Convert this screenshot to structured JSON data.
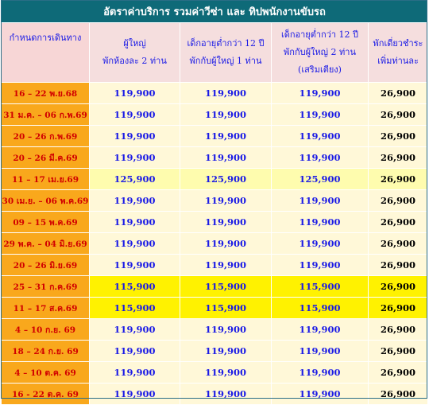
{
  "title": "อัตราค่าบริการ  รวมค่าวีซ่า และ ทิปพนักงานขับรถ",
  "headers": [
    {
      "line1": "กำหนดการเดินทาง",
      "line2": "",
      "line3": ""
    },
    {
      "line1": "ผู้ใหญ่",
      "line2": "พักห้องละ 2 ท่าน",
      "line3": ""
    },
    {
      "line1": "เด็กอายุต่ำกว่า 12 ปี",
      "line2": "พักกับผู้ใหญ่ 1 ท่าน",
      "line3": ""
    },
    {
      "line1": "เด็กอายุต่ำกว่า 12 ปี",
      "line2": "พักกับผู้ใหญ่ 2 ท่าน",
      "line3": "(เสริมเตียง)"
    },
    {
      "line1": "พักเดี่ยวชำระ",
      "line2": "เพิ่มท่านละ",
      "line3": ""
    }
  ],
  "rows": [
    {
      "date": "16 – 22 พ.ย.68",
      "adult": "119,900",
      "child1": "119,900",
      "child2": "119,900",
      "single": "26,900"
    },
    {
      "date": "31 ม.ค. – 06 ก.พ.69",
      "adult": "119,900",
      "child1": "119,900",
      "child2": "119,900",
      "single": "26,900"
    },
    {
      "date": "20 – 26 ก.พ.69",
      "adult": "119,900",
      "child1": "119,900",
      "child2": "119,900",
      "single": "26,900"
    },
    {
      "date": "20 – 26 มี.ค.69",
      "adult": "119,900",
      "child1": "119,900",
      "child2": "119,900",
      "single": "26,900"
    },
    {
      "date": "11 – 17 เม.ย.69",
      "adult": "125,900",
      "child1": "125,900",
      "child2": "125,900",
      "single": "26,900"
    },
    {
      "date": "30 เม.ย. – 06 พ.ค.69",
      "adult": "119,900",
      "child1": "119,900",
      "child2": "119,900",
      "single": "26,900"
    },
    {
      "date": "09 – 15 พ.ค.69",
      "adult": "119,900",
      "child1": "119,900",
      "child2": "119,900",
      "single": "26,900"
    },
    {
      "date": "29 พ.ค. – 04 มิ.ย.69",
      "adult": "119,900",
      "child1": "119,900",
      "child2": "119,900",
      "single": "26,900"
    },
    {
      "date": "20 – 26 มิ.ย.69",
      "adult": "119,900",
      "child1": "119,900",
      "child2": "119,900",
      "single": "26,900"
    },
    {
      "date": "25 – 31 ก.ค.69",
      "adult": "115,900",
      "child1": "115,900",
      "child2": "115,900",
      "single": "26,900"
    },
    {
      "date": "11 – 17 ส.ค.69",
      "adult": "115,900",
      "child1": "115,900",
      "child2": "115,900",
      "single": "26,900"
    },
    {
      "date": "4 – 10 ก.ย. 69",
      "adult": "119,900",
      "child1": "119,900",
      "child2": "119,900",
      "single": "26,900"
    },
    {
      "date": "18 – 24 ก.ย. 69",
      "adult": "119,900",
      "child1": "119,900",
      "child2": "119,900",
      "single": "26,900"
    },
    {
      "date": "4 – 10 ต.ค. 69",
      "adult": "119,900",
      "child1": "119,900",
      "child2": "119,900",
      "single": "26,900"
    },
    {
      "date": "16  - 22 ต.ค. 69",
      "adult": "119,900",
      "child1": "119,900",
      "child2": "119,900",
      "single": "26,900"
    }
  ],
  "colors": {
    "title_bg": "#0e6a78",
    "header_bg": "#f5dede",
    "date_bg": "#f9a81c",
    "date_text": "#d10000",
    "price_bg": "#fff8d8",
    "price_text": "#1a1ae6",
    "pale_highlight": "#fefcae",
    "bright_highlight": "#fff200"
  }
}
